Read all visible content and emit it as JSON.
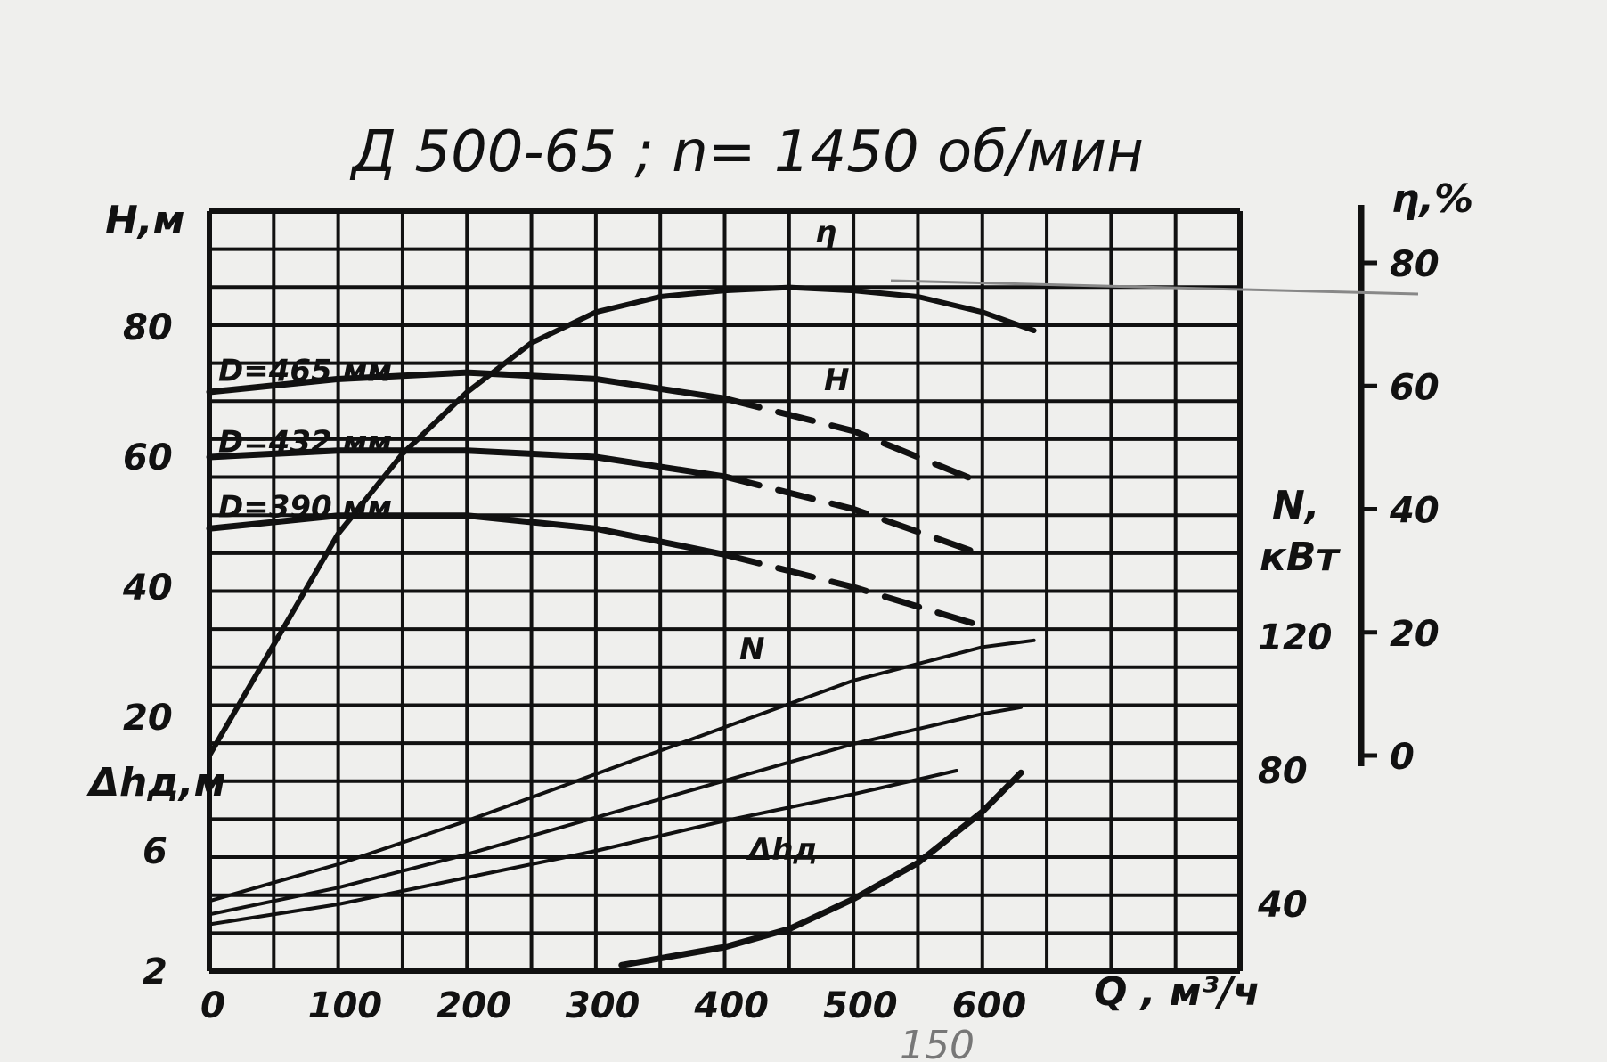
{
  "chart_data": {
    "type": "line",
    "title": "Д 500-65 ; n= 1450 об/мин",
    "x_axis": {
      "label": "Q , м³/ч",
      "ticks": [
        "0",
        "100",
        "200",
        "300",
        "400",
        "500",
        "600"
      ],
      "range": [
        0,
        700
      ]
    },
    "y_axis_head": {
      "label": "H,м",
      "ticks": [
        "20",
        "40",
        "60",
        "80"
      ],
      "range": [
        0,
        100
      ]
    },
    "y_axis_npsh": {
      "label": "Δhд,м",
      "ticks": [
        "2",
        "6"
      ]
    },
    "y_axis_power": {
      "label": "N,",
      "unit": "кВт",
      "ticks": [
        "40",
        "80",
        "120"
      ]
    },
    "y_axis_efficiency": {
      "label": "η,%",
      "ticks": [
        "0",
        "20",
        "40",
        "60",
        "80"
      ],
      "range": [
        0,
        80
      ]
    },
    "curve_labels": {
      "efficiency": "η",
      "head": "H",
      "power": "N",
      "npsh": "Δhд"
    },
    "head_series": [
      {
        "name": "D=465 мм",
        "x": [
          0,
          100,
          200,
          300,
          400,
          500,
          600
        ],
        "y": [
          70,
          72,
          73,
          72,
          69,
          64,
          56
        ]
      },
      {
        "name": "D=432 мм",
        "x": [
          0,
          100,
          200,
          300,
          400,
          500,
          600
        ],
        "y": [
          60,
          61,
          61,
          60,
          57,
          52,
          45
        ]
      },
      {
        "name": "D=390 мм",
        "x": [
          0,
          100,
          200,
          300,
          400,
          500,
          600
        ],
        "y": [
          49,
          51,
          51,
          49,
          45,
          40,
          34
        ]
      }
    ],
    "efficiency_series": {
      "x": [
        0,
        50,
        100,
        150,
        200,
        250,
        300,
        350,
        400,
        450,
        500,
        550,
        600,
        640
      ],
      "y": [
        0,
        18,
        36,
        49,
        59,
        67,
        72,
        74.5,
        75.5,
        76,
        75.5,
        74.5,
        72,
        69
      ]
    },
    "power_series": [
      {
        "x": [
          0,
          100,
          200,
          300,
          400,
          500,
          600,
          640
        ],
        "y": [
          41,
          52,
          65,
          79,
          93,
          107,
          117,
          119
        ]
      },
      {
        "x": [
          0,
          100,
          200,
          300,
          400,
          500,
          600,
          630
        ],
        "y": [
          37,
          45,
          55,
          66,
          77,
          88,
          97,
          99
        ]
      },
      {
        "x": [
          0,
          100,
          200,
          300,
          400,
          500,
          580
        ],
        "y": [
          34,
          40,
          48,
          56,
          65,
          73,
          80
        ]
      }
    ],
    "npsh_series": {
      "x": [
        320,
        400,
        450,
        500,
        550,
        600,
        630
      ],
      "y": [
        2.2,
        2.8,
        3.4,
        4.4,
        5.6,
        7.3,
        8.6
      ]
    },
    "grid": true
  },
  "below_axis_note": "150"
}
